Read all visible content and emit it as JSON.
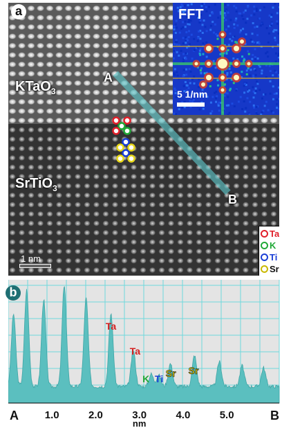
{
  "panel_a": {
    "letter": "a",
    "top_material": "KTaO",
    "top_material_sub": "3",
    "bottom_material": "SrTiO",
    "bottom_material_sub": "3",
    "point_a": "A",
    "point_b": "B",
    "scale_label": "1 nm",
    "fft": {
      "title": "FFT",
      "scale_label": "5 1/nm"
    },
    "legend": [
      {
        "label": "Ta",
        "color": "#e0202a"
      },
      {
        "label": "K",
        "color": "#1fa836"
      },
      {
        "label": "Ti",
        "color": "#1a3fd6"
      },
      {
        "label": "Sr",
        "color": "#e8d81a"
      }
    ]
  },
  "panel_b": {
    "letter": "b"
  },
  "chart_data": {
    "type": "area",
    "xlabel": "nm",
    "xlim": [
      0,
      6.2
    ],
    "x_ticks": [
      1.0,
      2.0,
      3.0,
      4.0,
      5.0
    ],
    "x_tick_labels": [
      "1.0",
      "2.0",
      "3.0",
      "4.0",
      "5.0"
    ],
    "start_label": "A",
    "end_label": "B",
    "grid": true,
    "peaks_x": [
      0.12,
      0.42,
      0.81,
      1.28,
      1.78,
      2.35,
      2.86,
      3.27,
      3.44,
      3.71,
      4.26,
      4.83,
      5.35,
      5.84
    ],
    "peaks_height": [
      0.7,
      0.93,
      0.84,
      0.98,
      0.85,
      0.7,
      0.35,
      0.12,
      0.11,
      0.22,
      0.3,
      0.24,
      0.2,
      0.18
    ],
    "annotations": [
      {
        "text": "Ta",
        "x": 2.35,
        "color": "#d42020"
      },
      {
        "text": "Ta",
        "x": 2.9,
        "color": "#d42020"
      },
      {
        "text": "K",
        "x": 3.15,
        "color": "#1fa836"
      },
      {
        "text": "Ti",
        "x": 3.45,
        "color": "#1a3fd6"
      },
      {
        "text": "Sr",
        "x": 3.72,
        "color": "#e8d81a"
      },
      {
        "text": "Sr",
        "x": 4.24,
        "color": "#e8d81a"
      }
    ],
    "fill_color": "#5bbfbf",
    "grid_color": "#6ed8dc"
  }
}
